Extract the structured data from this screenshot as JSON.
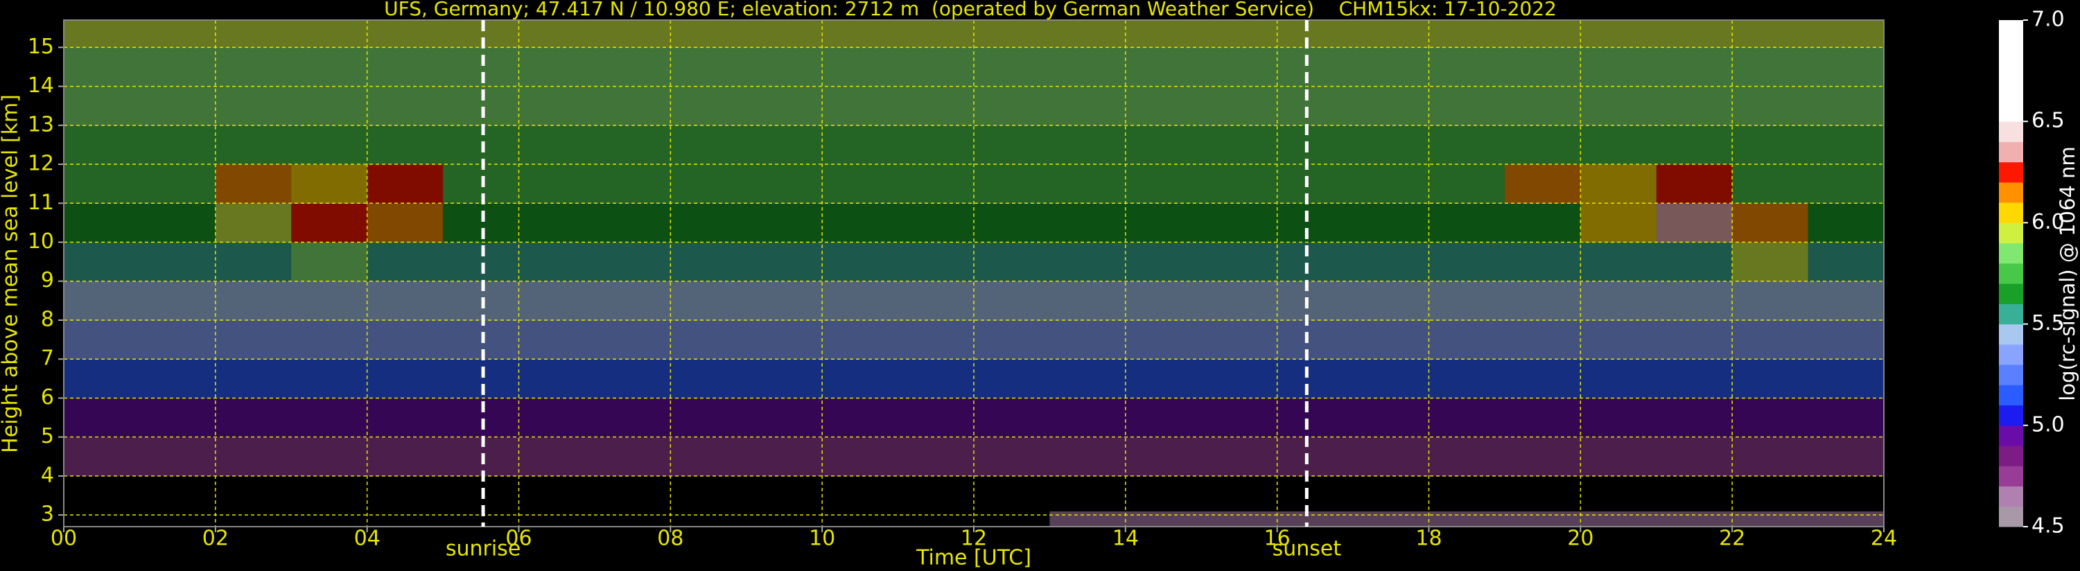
{
  "chart_data": {
    "type": "heatmap",
    "title": "UFS, Germany; 47.417 N / 10.980 E; elevation: 2712 m  (operated by German Weather Service)    CHM15kx: 17-10-2022",
    "xlabel": "Time [UTC]",
    "ylabel": "Height above mean sea level [km]",
    "colorbar_label": "log(rc-signal) @ 1064 nm",
    "xlim": [
      0,
      24
    ],
    "ylim": [
      2.7,
      15.7
    ],
    "xticks": [
      {
        "value": 0,
        "label": "00"
      },
      {
        "value": 2,
        "label": "02"
      },
      {
        "value": 4,
        "label": "04"
      },
      {
        "value": 6,
        "label": "06"
      },
      {
        "value": 8,
        "label": "08"
      },
      {
        "value": 10,
        "label": "10"
      },
      {
        "value": 12,
        "label": "12"
      },
      {
        "value": 14,
        "label": "14"
      },
      {
        "value": 16,
        "label": "16"
      },
      {
        "value": 18,
        "label": "18"
      },
      {
        "value": 20,
        "label": "20"
      },
      {
        "value": 22,
        "label": "22"
      },
      {
        "value": 24,
        "label": "24"
      }
    ],
    "yticks": [
      3,
      4,
      5,
      6,
      7,
      8,
      9,
      10,
      11,
      12,
      13,
      14,
      15
    ],
    "grid": true,
    "grid_color": "#e6e600",
    "clim": [
      4.5,
      7.0
    ],
    "cticks": [
      4.5,
      {
        "value": 5.0,
        "label": "5.0"
      },
      5.5,
      {
        "value": 6.0,
        "label": "6.0"
      },
      6.5,
      {
        "value": 7.0,
        "label": "7.0"
      }
    ],
    "colors": [
      "#a898a8",
      "#b080b0",
      "#983c98",
      "#7c1c84",
      "#6a0ca8",
      "#1c1cf0",
      "#2a5cff",
      "#5a80ff",
      "#88a4ff",
      "#a8c8f0",
      "#38b098",
      "#18a028",
      "#48c848",
      "#80e870",
      "#d0f040",
      "#ffd800",
      "#ff9000",
      "#ff1800",
      "#f0b0b0",
      "#f8e0e0",
      "#ffffff",
      "#ffffff",
      "#ffffff",
      "#ffffff",
      "#ffffff"
    ],
    "under_color": "#000000",
    "x_edges": [
      0,
      1,
      2,
      3,
      4,
      5,
      6,
      7,
      8,
      9,
      10,
      11,
      12,
      13,
      14,
      15,
      16,
      17,
      18,
      19,
      20,
      21,
      22,
      23,
      24
    ],
    "y_edges": [
      2.7,
      3.1,
      4,
      5,
      6,
      7,
      8,
      9,
      10,
      11,
      12,
      13,
      14,
      15,
      15.7
    ],
    "z": [
      [
        4.3,
        4.3,
        4.3,
        4.3,
        4.3,
        4.3,
        4.3,
        4.3,
        4.3,
        4.3,
        4.3,
        4.3,
        4.3,
        4.6,
        4.6,
        4.6,
        4.6,
        4.6,
        4.6,
        4.6,
        4.6,
        4.6,
        4.6,
        4.6
      ],
      [
        4.4,
        4.4,
        4.4,
        4.4,
        4.4,
        4.4,
        4.4,
        4.4,
        4.4,
        4.4,
        4.4,
        4.4,
        4.4,
        4.4,
        4.4,
        4.4,
        4.4,
        4.4,
        4.4,
        4.4,
        4.4,
        4.4,
        4.4,
        4.4
      ],
      [
        4.7,
        4.7,
        4.7,
        4.7,
        4.7,
        4.7,
        4.7,
        4.7,
        4.7,
        4.7,
        4.7,
        4.7,
        4.7,
        4.7,
        4.7,
        4.7,
        4.7,
        4.7,
        4.7,
        4.7,
        4.7,
        4.7,
        4.7,
        4.7
      ],
      [
        4.9,
        4.9,
        4.9,
        4.9,
        4.9,
        4.9,
        4.9,
        4.9,
        4.9,
        4.9,
        4.9,
        4.9,
        4.9,
        4.9,
        4.9,
        4.9,
        4.9,
        4.9,
        4.9,
        4.9,
        4.9,
        4.9,
        4.9,
        4.9
      ],
      [
        5.1,
        5.1,
        5.1,
        5.1,
        5.1,
        5.1,
        5.1,
        5.1,
        5.1,
        5.1,
        5.1,
        5.1,
        5.1,
        5.1,
        5.1,
        5.1,
        5.1,
        5.1,
        5.1,
        5.1,
        5.1,
        5.1,
        5.1,
        5.1
      ],
      [
        5.3,
        5.3,
        5.3,
        5.3,
        5.3,
        5.3,
        5.3,
        5.3,
        5.3,
        5.3,
        5.3,
        5.3,
        5.3,
        5.3,
        5.3,
        5.3,
        5.3,
        5.3,
        5.3,
        5.3,
        5.3,
        5.3,
        5.3,
        5.3
      ],
      [
        5.4,
        5.4,
        5.4,
        5.4,
        5.4,
        5.4,
        5.4,
        5.4,
        5.4,
        5.4,
        5.4,
        5.4,
        5.4,
        5.4,
        5.4,
        5.4,
        5.4,
        5.4,
        5.4,
        5.4,
        5.4,
        5.4,
        5.4,
        5.4
      ],
      [
        5.5,
        5.5,
        5.5,
        5.8,
        5.5,
        5.5,
        5.5,
        5.5,
        5.5,
        5.5,
        5.5,
        5.5,
        5.5,
        5.5,
        5.5,
        5.5,
        5.5,
        5.5,
        5.5,
        5.5,
        5.5,
        5.5,
        5.9,
        5.5
      ],
      [
        5.6,
        5.6,
        5.9,
        6.2,
        6.1,
        5.6,
        5.6,
        5.6,
        5.6,
        5.6,
        5.6,
        5.6,
        5.6,
        5.6,
        5.6,
        5.6,
        5.6,
        5.6,
        5.6,
        5.6,
        6.0,
        6.3,
        6.1,
        5.6
      ],
      [
        5.7,
        5.7,
        6.1,
        6.0,
        6.2,
        5.7,
        5.7,
        5.7,
        5.7,
        5.7,
        5.7,
        5.7,
        5.7,
        5.7,
        5.7,
        5.7,
        5.7,
        5.7,
        5.7,
        6.1,
        6.0,
        6.2,
        5.7,
        5.7
      ],
      [
        5.7,
        5.7,
        5.7,
        5.7,
        5.7,
        5.7,
        5.7,
        5.7,
        5.7,
        5.7,
        5.7,
        5.7,
        5.7,
        5.7,
        5.7,
        5.7,
        5.7,
        5.7,
        5.7,
        5.7,
        5.7,
        5.7,
        5.7,
        5.7
      ],
      [
        5.8,
        5.8,
        5.8,
        5.8,
        5.8,
        5.8,
        5.8,
        5.8,
        5.8,
        5.8,
        5.8,
        5.8,
        5.8,
        5.8,
        5.8,
        5.8,
        5.8,
        5.8,
        5.8,
        5.8,
        5.8,
        5.8,
        5.8,
        5.8
      ],
      [
        5.8,
        5.8,
        5.8,
        5.8,
        5.8,
        5.8,
        5.8,
        5.8,
        5.8,
        5.8,
        5.8,
        5.8,
        5.8,
        5.8,
        5.8,
        5.8,
        5.8,
        5.8,
        5.8,
        5.8,
        5.8,
        5.8,
        5.8,
        5.8
      ],
      [
        5.9,
        5.9,
        5.9,
        5.9,
        5.9,
        5.9,
        5.9,
        5.9,
        5.9,
        5.9,
        5.9,
        5.9,
        5.9,
        5.9,
        5.9,
        5.9,
        5.9,
        5.9,
        5.9,
        5.9,
        5.9,
        5.9,
        5.9,
        5.9
      ]
    ],
    "annotations": [
      {
        "text": "sunrise",
        "x": 5.53
      },
      {
        "text": "sunset",
        "x": 16.39
      }
    ]
  }
}
